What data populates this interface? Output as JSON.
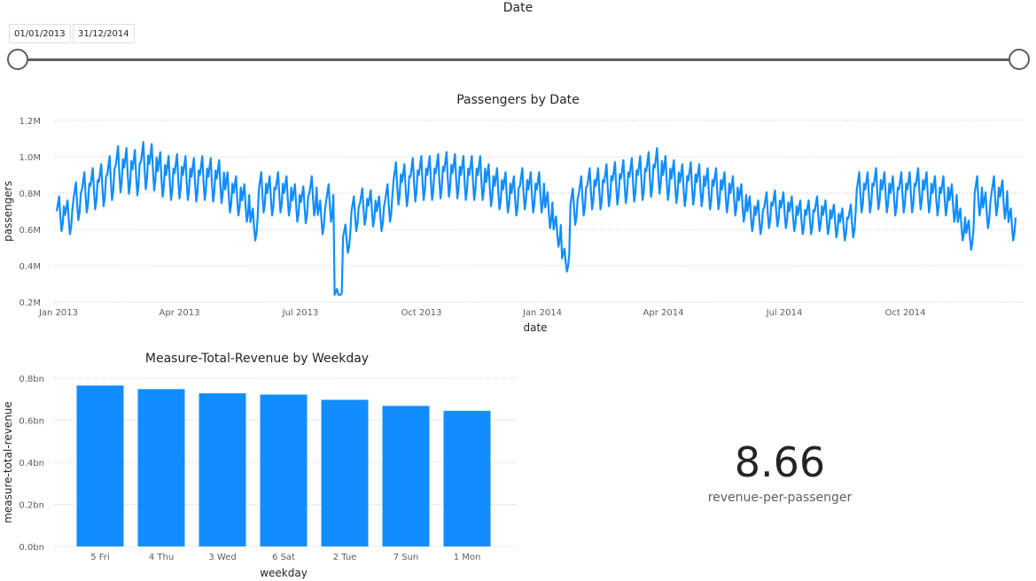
{
  "slicer": {
    "title": "Date",
    "start_date": "01/01/2013",
    "end_date": "31/12/2014"
  },
  "colors": {
    "accent": "#118DFF",
    "track": "#605E5C",
    "grid": "#C8C6C4",
    "text": "#252423",
    "muted": "#605E5C"
  },
  "card": {
    "value": "8.66",
    "label": "revenue-per-passenger"
  },
  "chart_data": [
    {
      "type": "line",
      "title": "Passengers by Date",
      "xlabel": "date",
      "ylabel": "passengers",
      "ylim": [
        200000,
        1200000
      ],
      "y_ticks": [
        "0.2M",
        "0.4M",
        "0.6M",
        "0.8M",
        "1.0M",
        "1.2M"
      ],
      "x_ticks": [
        "Jan 2013",
        "Apr 2013",
        "Jul 2013",
        "Oct 2013",
        "Jan 2014",
        "Apr 2014",
        "Jul 2014",
        "Oct 2014"
      ],
      "grid": true,
      "series": [
        {
          "x_start": "2013-01-01",
          "x_end": "2014-12-31",
          "y_step": "weekly",
          "weekly_y": [
            760000,
            740000,
            830000,
            880000,
            900000,
            920000,
            960000,
            1010000,
            1000000,
            990000,
            1030000,
            1020000,
            980000,
            960000,
            970000,
            960000,
            950000,
            960000,
            950000,
            940000,
            880000,
            860000,
            820000,
            700000,
            880000,
            860000,
            880000,
            860000,
            820000,
            810000,
            860000,
            740000,
            820000,
            300000,
            620000,
            760000,
            800000,
            790000,
            760000,
            820000,
            930000,
            920000,
            950000,
            960000,
            960000,
            970000,
            980000,
            970000,
            960000,
            960000,
            960000,
            920000,
            900000,
            880000,
            860000,
            900000,
            880000,
            880000,
            780000,
            660000,
            500000,
            800000,
            860000,
            900000,
            900000,
            920000,
            930000,
            940000,
            950000,
            960000,
            980000,
            1000000,
            960000,
            940000,
            920000,
            930000,
            920000,
            900000,
            900000,
            880000,
            860000,
            820000,
            760000,
            740000,
            780000,
            790000,
            780000,
            760000,
            740000,
            740000,
            760000,
            740000,
            720000,
            700000,
            720000,
            880000,
            880000,
            900000,
            880000,
            860000,
            880000,
            880000,
            900000,
            880000,
            860000,
            860000,
            820000,
            700000,
            640000,
            860000,
            780000,
            860000,
            840000,
            700000
          ]
        }
      ]
    },
    {
      "type": "bar",
      "title": "Measure-Total-Revenue by Weekday",
      "xlabel": "weekday",
      "ylabel": "measure-total-revenue",
      "ylim": [
        0,
        0.8
      ],
      "y_ticks": [
        "0.0bn",
        "0.2bn",
        "0.4bn",
        "0.6bn",
        "0.8bn"
      ],
      "categories": [
        "5 Fri",
        "4 Thu",
        "3 Wed",
        "6 Sat",
        "2 Tue",
        "7 Sun",
        "1 Mon"
      ],
      "values": [
        0.765,
        0.748,
        0.728,
        0.722,
        0.697,
        0.668,
        0.645
      ],
      "grid": true
    }
  ]
}
